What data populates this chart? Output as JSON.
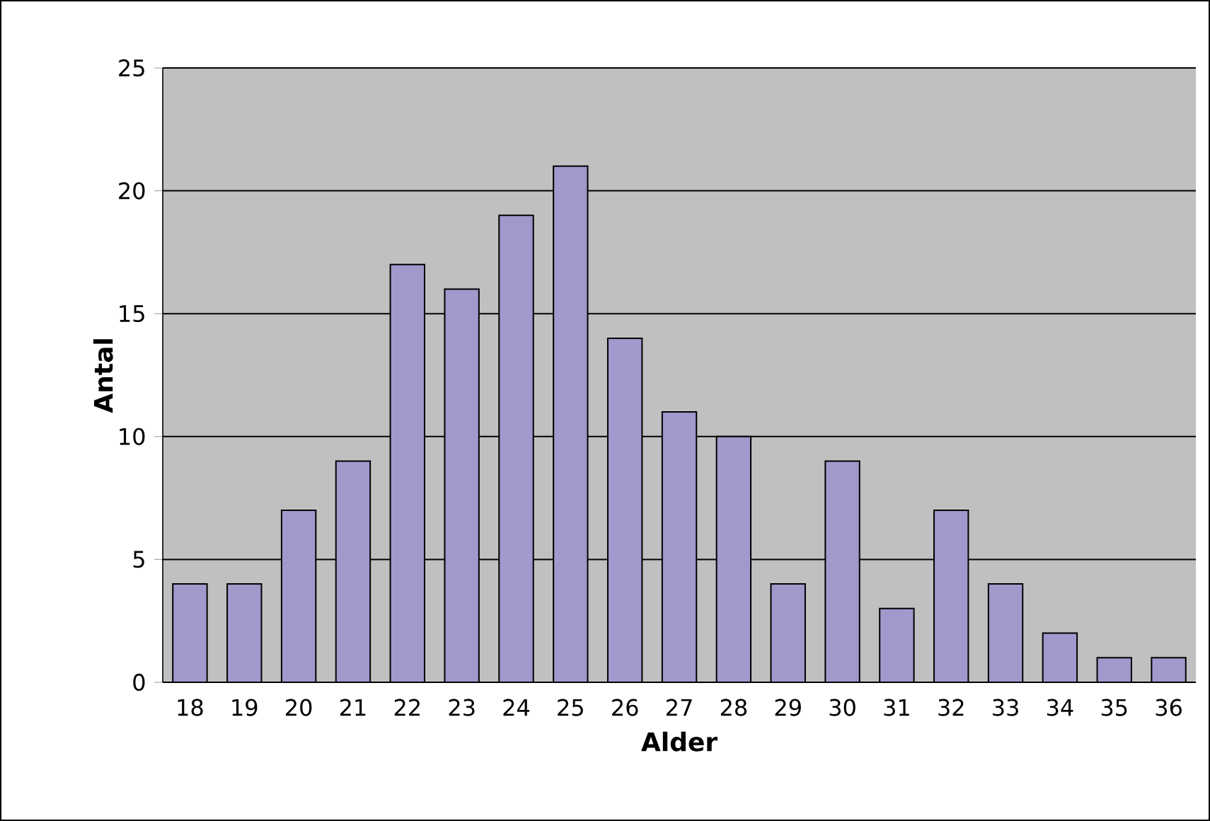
{
  "chart_data": {
    "type": "bar",
    "xlabel": "Alder",
    "ylabel": "Antal",
    "categories": [
      "18",
      "19",
      "20",
      "21",
      "22",
      "23",
      "24",
      "25",
      "26",
      "27",
      "28",
      "29",
      "30",
      "31",
      "32",
      "33",
      "34",
      "35",
      "36"
    ],
    "values": [
      4,
      4,
      7,
      9,
      17,
      16,
      19,
      21,
      14,
      11,
      10,
      4,
      9,
      3,
      7,
      4,
      2,
      1,
      1
    ],
    "color": "#9f99cc",
    "ylim": [
      0,
      25
    ],
    "yticks": [
      0,
      5,
      10,
      15,
      20,
      25
    ],
    "grid": "y"
  }
}
